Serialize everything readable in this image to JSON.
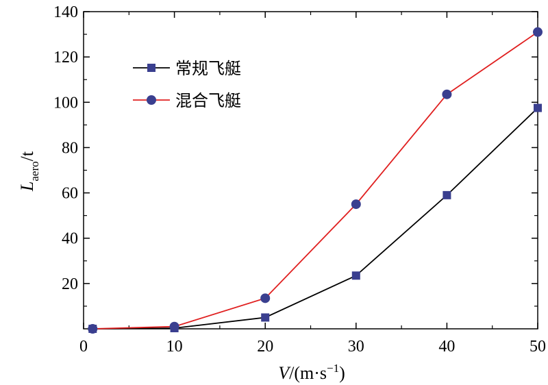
{
  "chart_data": {
    "type": "line",
    "x": [
      1,
      10,
      20,
      30,
      40,
      50
    ],
    "series": [
      {
        "name": "常规飞艇",
        "values": [
          0,
          0.3,
          5,
          23.5,
          59,
          97.5
        ],
        "color": "#000000",
        "marker": "square",
        "marker_color": "#3a3f8f"
      },
      {
        "name": "混合飞艇",
        "values": [
          0,
          1,
          13.5,
          55,
          103.5,
          131
        ],
        "color": "#e02020",
        "marker": "circle",
        "marker_color": "#3a3f8f"
      }
    ],
    "xlabel": {
      "italic": "V",
      "rest": "/(m·s",
      "sup": "−1",
      "end": ")"
    },
    "ylabel": {
      "italic": "L",
      "sub": "aero",
      "rest": "/t"
    },
    "xlim": [
      0,
      50
    ],
    "ylim": [
      0,
      140
    ],
    "xticks": [
      0,
      10,
      20,
      30,
      40,
      50
    ],
    "yticks": [
      20,
      40,
      60,
      80,
      100,
      120,
      140
    ],
    "xtick_labels": [
      "0",
      "10",
      "20",
      "30",
      "40",
      "50"
    ],
    "ytick_labels": [
      "20",
      "40",
      "60",
      "80",
      "100",
      "120",
      "140"
    ],
    "grid": false,
    "legend_position": "top-left"
  }
}
